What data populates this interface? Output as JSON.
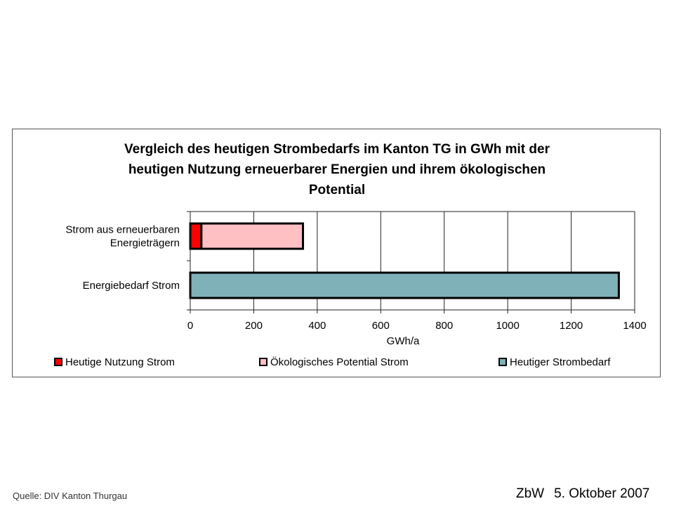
{
  "chart_data": {
    "type": "bar",
    "orientation": "horizontal",
    "stacked": true,
    "title_lines": [
      "Vergleich des heutigen Strombedarfs im Kanton TG in GWh mit der",
      "heutigen Nutzung erneuerbarer Energien und ihrem ökologischen",
      "Potential"
    ],
    "categories": [
      [
        "Strom aus erneuerbaren",
        "Energieträgern"
      ],
      [
        "Energiebedarf Strom"
      ]
    ],
    "series": [
      {
        "name": "Heutige Nutzung Strom",
        "color": "#ff0000",
        "values": [
          35,
          0
        ]
      },
      {
        "name": "Ökologisches Potential Strom",
        "color": "#ffc0c4",
        "values": [
          320,
          0
        ]
      },
      {
        "name": "Heutiger Strombedarf",
        "color": "#7fb1b8",
        "values": [
          0,
          1350
        ]
      }
    ],
    "xlabel": "GWh/a",
    "xlim": [
      0,
      1400
    ],
    "xticks": [
      0,
      200,
      400,
      600,
      800,
      1000,
      1200,
      1400
    ],
    "grid": true,
    "legend_position": "bottom"
  },
  "source_note": "Quelle: DIV Kanton Thurgau",
  "footer": {
    "org": "ZbW",
    "date": "5. Oktober 2007"
  }
}
